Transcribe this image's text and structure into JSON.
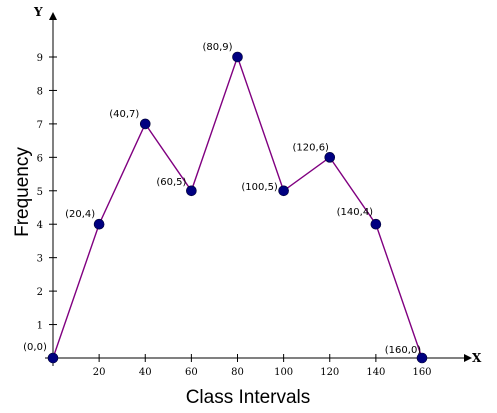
{
  "chart_data": {
    "type": "line",
    "title": "",
    "xlabel": "Class Intervals",
    "ylabel": "Frequency",
    "x_axis_letter": "X",
    "y_axis_letter": "Y",
    "xlim": [
      0,
      160
    ],
    "ylim": [
      0,
      9
    ],
    "xticks": [
      20,
      40,
      60,
      80,
      100,
      120,
      140,
      160
    ],
    "yticks": [
      1,
      2,
      3,
      4,
      5,
      6,
      7,
      8,
      9
    ],
    "grid": false,
    "colors": {
      "line": "#800080",
      "marker": "#000080",
      "axis": "#000000"
    },
    "series": [
      {
        "x": [
          0,
          20,
          40,
          60,
          80,
          100,
          120,
          140,
          160
        ],
        "y": [
          0,
          4,
          7,
          5,
          9,
          5,
          6,
          4,
          0
        ],
        "point_labels": [
          "(0,0)",
          "(20,4)",
          "(40,7)",
          "(60,5)",
          "(80,9)",
          "(100,5)",
          "(120,6)",
          "(140,4)",
          "(160,0)"
        ]
      }
    ]
  }
}
